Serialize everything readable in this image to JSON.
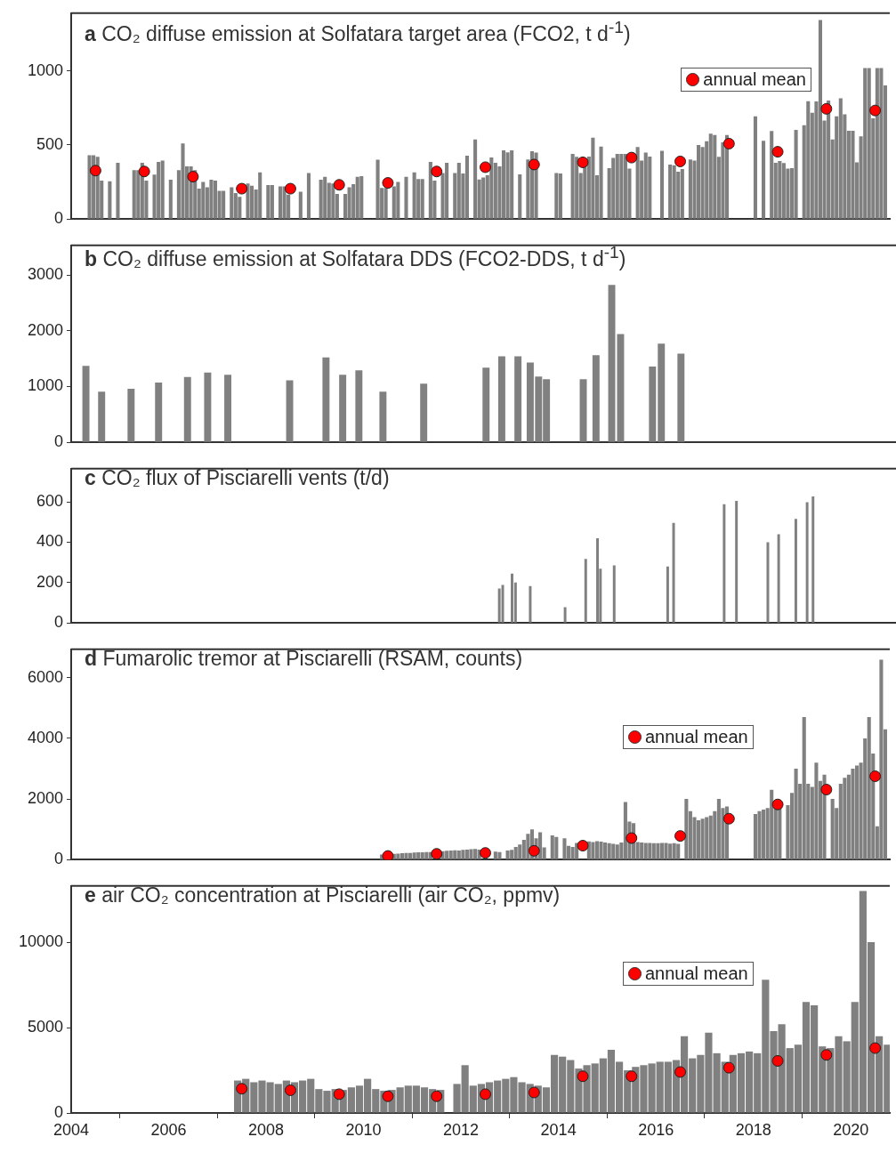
{
  "chart_data": [
    {
      "type": "bar",
      "title": "a CO₂ diffuse emission at Solfatara target area (FCO2, t d$^{-1}$)",
      "xlim": [
        2004,
        2020.8
      ],
      "ylim": [
        0,
        1390
      ],
      "yticks": [
        0,
        500,
        1000
      ],
      "tick_labels": "y",
      "legend": "top right",
      "series": [
        {
          "color": "#808080",
          "x": [
            2004.375,
            2004.458,
            2004.542,
            2004.625,
            2004.792,
            2004.958,
            2005.292,
            2005.375,
            2005.458,
            2005.542,
            2005.708,
            2005.792,
            2005.875,
            2006.042,
            2006.208,
            2006.292,
            2006.375,
            2006.458,
            2006.542,
            2006.625,
            2006.708,
            2006.792,
            2006.875,
            2006.958,
            2007.042,
            2007.125,
            2007.292,
            2007.375,
            2007.458,
            2007.625,
            2007.708,
            2007.792,
            2007.875,
            2008.042,
            2008.125,
            2008.292,
            2008.375,
            2008.458,
            2008.708,
            2008.875,
            2009.125,
            2009.208,
            2009.292,
            2009.375,
            2009.458,
            2009.625,
            2009.708,
            2009.792,
            2009.875,
            2009.958,
            2010.292,
            2010.375,
            2010.458,
            2010.625,
            2010.708,
            2010.875,
            2011.042,
            2011.125,
            2011.208,
            2011.375,
            2011.458,
            2011.625,
            2011.708,
            2011.875,
            2011.958,
            2012.042,
            2012.125,
            2012.292,
            2012.375,
            2012.458,
            2012.542,
            2012.625,
            2012.708,
            2012.792,
            2012.875,
            2012.958,
            2013.042,
            2013.208,
            2013.375,
            2013.458,
            2013.542,
            2013.958,
            2014.042,
            2014.292,
            2014.375,
            2014.458,
            2014.542,
            2014.625,
            2014.708,
            2014.792,
            2014.875,
            2015.042,
            2015.125,
            2015.208,
            2015.292,
            2015.375,
            2015.458,
            2015.625,
            2015.708,
            2015.792,
            2015.875,
            2016.125,
            2016.292,
            2016.375,
            2016.458,
            2016.542,
            2016.708,
            2016.792,
            2016.875,
            2016.958,
            2017.042,
            2017.125,
            2017.208,
            2017.292,
            2017.375,
            2017.458,
            2018.042,
            2018.208,
            2018.375,
            2018.458,
            2018.542,
            2018.625,
            2018.708,
            2018.792,
            2018.875,
            2019.042,
            2019.125,
            2019.208,
            2019.292,
            2019.375,
            2019.458,
            2019.542,
            2019.625,
            2019.708,
            2019.792,
            2019.875,
            2019.958,
            2020.042,
            2020.125,
            2020.208,
            2020.292,
            2020.375,
            2020.458,
            2020.542,
            2020.625,
            2020.708
          ],
          "values": [
            430,
            430,
            420,
            260,
            255,
            380,
            330,
            330,
            380,
            260,
            300,
            385,
            395,
            265,
            330,
            510,
            355,
            355,
            330,
            205,
            250,
            215,
            265,
            260,
            190,
            190,
            215,
            175,
            150,
            240,
            225,
            200,
            315,
            230,
            230,
            220,
            220,
            165,
            185,
            310,
            265,
            285,
            245,
            240,
            170,
            170,
            215,
            235,
            285,
            290,
            400,
            210,
            210,
            220,
            250,
            285,
            315,
            270,
            270,
            385,
            260,
            310,
            380,
            310,
            380,
            307,
            428,
            538,
            267,
            280,
            295,
            415,
            380,
            355,
            463,
            450,
            463,
            302,
            402,
            457,
            449,
            311,
            307,
            439,
            420,
            310,
            368,
            421,
            550,
            295,
            490,
            343,
            413,
            440,
            440,
            440,
            340,
            487,
            395,
            449,
            422,
            460,
            367,
            363,
            320,
            337,
            402,
            395,
            500,
            487,
            526,
            577,
            568,
            420,
            518,
            568,
            693,
            528,
            594,
            380,
            391,
            378,
            341,
            343,
            602,
            633,
            796,
            717,
            794,
            1343,
            665,
            800,
            538,
            693,
            815,
            707,
            596,
            596,
            383,
            559,
            1019,
            1019,
            680,
            1019,
            1019,
            902
          ]
        },
        {
          "type": "scatter",
          "name": "annual mean",
          "color": "#ff0000",
          "marker": "circle",
          "x": [
            2004.5,
            2005.5,
            2006.5,
            2007.5,
            2008.5,
            2009.5,
            2010.5,
            2011.5,
            2012.5,
            2013.5,
            2014.5,
            2015.5,
            2016.5,
            2017.5,
            2018.5,
            2019.5,
            2020.5
          ],
          "values": [
            327,
            321,
            286,
            205,
            205,
            231,
            244,
            321,
            350,
            368,
            383,
            415,
            389,
            509,
            454,
            744,
            733
          ]
        }
      ]
    },
    {
      "type": "bar",
      "title": "b CO₂ diffuse emission at Solfatara DDS (FCO2-DDS, t d$^{-1}$)",
      "xlim": [
        2004,
        2020.8
      ],
      "ylim": [
        0,
        3530
      ],
      "yticks": [
        0,
        1000,
        2000,
        3000
      ],
      "tick_labels": "y",
      "series": [
        {
          "color": "#808080",
          "x": [
            2004.3,
            2004.62,
            2005.22,
            2005.78,
            2006.37,
            2006.78,
            2007.19,
            2008.45,
            2009.19,
            2009.53,
            2009.86,
            2010.35,
            2011.18,
            2012.45,
            2012.77,
            2013.1,
            2013.35,
            2013.52,
            2013.68,
            2014.43,
            2014.69,
            2015.01,
            2015.19,
            2015.84,
            2016.02,
            2016.42
          ],
          "values": [
            1370,
            910,
            960,
            1070,
            1170,
            1250,
            1210,
            1110,
            1520,
            1210,
            1290,
            910,
            1050,
            1340,
            1540,
            1540,
            1430,
            1180,
            1130,
            1130,
            1560,
            2820,
            1940,
            1360,
            1770,
            1590
          ]
        }
      ]
    },
    {
      "type": "bar",
      "title": "c CO₂ flux of Pisciarelli vents (t/d)",
      "xlim": [
        2004,
        2020.8
      ],
      "ylim": [
        0,
        764
      ],
      "yticks": [
        0,
        200,
        400,
        600
      ],
      "tick_labels": "y",
      "series": [
        {
          "color": "#808080",
          "x": [
            2012.72,
            2012.79,
            2012.98,
            2013.05,
            2013.35,
            2014.06,
            2014.48,
            2014.72,
            2014.78,
            2015.06,
            2016.15,
            2016.27,
            2017.3,
            2017.55,
            2018.19,
            2018.41,
            2018.76,
            2018.99,
            2019.11
          ],
          "values": [
            171,
            188,
            244,
            200,
            183,
            78,
            317,
            420,
            268,
            285,
            280,
            495,
            588,
            605,
            400,
            439,
            515,
            598,
            627
          ]
        }
      ]
    },
    {
      "type": "bar",
      "title": "d Fumarolic tremor at Pisciarelli (RSAM, counts)",
      "xlim": [
        2004,
        2020.8
      ],
      "ylim": [
        0,
        6940
      ],
      "yticks": [
        0,
        2000,
        4000,
        6000
      ],
      "tick_labels": "y",
      "legend": "top",
      "series": [
        {
          "color": "#808080",
          "x": [
            2010.375,
            2010.625,
            2010.708,
            2010.792,
            2010.875,
            2010.958,
            2011.042,
            2011.125,
            2011.208,
            2011.292,
            2011.375,
            2011.625,
            2011.708,
            2011.792,
            2011.875,
            2011.958,
            2012.042,
            2012.125,
            2012.208,
            2012.292,
            2012.375,
            2012.708,
            2012.792,
            2012.958,
            2013.042,
            2013.125,
            2013.208,
            2013.292,
            2013.375,
            2013.458,
            2013.542,
            2013.625,
            2013.708,
            2013.875,
            2013.958,
            2014.125,
            2014.208,
            2014.292,
            2014.375,
            2014.458,
            2014.542,
            2014.625,
            2014.708,
            2014.792,
            2014.875,
            2014.958,
            2015.042,
            2015.125,
            2015.208,
            2015.292,
            2015.375,
            2015.458,
            2015.542,
            2015.625,
            2015.708,
            2015.792,
            2015.875,
            2015.958,
            2016.042,
            2016.125,
            2016.208,
            2016.292,
            2016.375,
            2016.458,
            2016.625,
            2016.708,
            2016.792,
            2016.875,
            2016.958,
            2017.042,
            2017.125,
            2017.208,
            2017.292,
            2017.375,
            2017.458,
            2018.042,
            2018.125,
            2018.208,
            2018.292,
            2018.375,
            2018.458,
            2018.542,
            2018.708,
            2018.792,
            2018.875,
            2018.958,
            2019.042,
            2019.125,
            2019.208,
            2019.292,
            2019.375,
            2019.458,
            2019.625,
            2019.708,
            2019.792,
            2019.875,
            2019.958,
            2020.042,
            2020.125,
            2020.208,
            2020.292,
            2020.375,
            2020.458,
            2020.542,
            2020.625,
            2020.708
          ],
          "values": [
            170,
            190,
            200,
            210,
            220,
            220,
            230,
            240,
            240,
            250,
            250,
            280,
            290,
            300,
            310,
            300,
            320,
            330,
            340,
            350,
            330,
            260,
            250,
            300,
            320,
            420,
            500,
            650,
            850,
            1000,
            700,
            900,
            400,
            800,
            750,
            700,
            450,
            420,
            550,
            null,
            null,
            600,
            580,
            610,
            590,
            560,
            540,
            520,
            500,
            560,
            1900,
            1250,
            1200,
            580,
            560,
            550,
            550,
            540,
            540,
            550,
            550,
            530,
            540,
            520,
            2000,
            1600,
            1400,
            1300,
            1350,
            1400,
            1450,
            1600,
            2000,
            1700,
            1750,
            1500,
            1600,
            1650,
            1700,
            2300,
            1800,
            1700,
            1800,
            2200,
            3000,
            2500,
            4700,
            2500,
            2400,
            3200,
            2600,
            2800,
            2000,
            1700,
            2500,
            2700,
            2800,
            3000,
            3100,
            3200,
            4000,
            4700,
            3500,
            1100,
            6600,
            4300
          ]
        },
        {
          "type": "scatter",
          "name": "annual mean",
          "color": "#ff0000",
          "marker": "circle",
          "x": [
            2010.5,
            2011.5,
            2012.5,
            2013.5,
            2014.5,
            2015.5,
            2016.5,
            2017.5,
            2018.5,
            2019.5,
            2020.5
          ],
          "values": [
            120,
            190,
            220,
            290,
            460,
            710,
            780,
            1350,
            1820,
            2310,
            2750
          ]
        }
      ]
    },
    {
      "type": "bar",
      "title": "e air CO₂ concentration at Pisciarelli (air CO₂, ppmv)",
      "xlim": [
        2004,
        2020.8
      ],
      "xticks": [
        2004,
        2006,
        2008,
        2010,
        2012,
        2014,
        2016,
        2018,
        2020
      ],
      "ylim": [
        0,
        13300
      ],
      "yticks": [
        0,
        5000,
        10000
      ],
      "legend": "top",
      "series": [
        {
          "color": "#808080",
          "x": [
            2007.417,
            2007.583,
            2007.75,
            2007.917,
            2008.083,
            2008.25,
            2008.417,
            2008.583,
            2008.75,
            2008.917,
            2009.083,
            2009.25,
            2009.417,
            2009.583,
            2009.75,
            2009.917,
            2010.083,
            2010.25,
            2010.417,
            2010.583,
            2010.75,
            2010.917,
            2011.083,
            2011.25,
            2011.417,
            2011.583,
            2011.917,
            2012.083,
            2012.25,
            2012.417,
            2012.583,
            2012.75,
            2012.917,
            2013.083,
            2013.25,
            2013.417,
            2013.583,
            2013.75,
            2013.917,
            2014.083,
            2014.25,
            2014.417,
            2014.583,
            2014.75,
            2014.917,
            2015.083,
            2015.25,
            2015.417,
            2015.583,
            2015.75,
            2015.917,
            2016.083,
            2016.25,
            2016.417,
            2016.583,
            2016.75,
            2016.917,
            2017.083,
            2017.25,
            2017.417,
            2017.583,
            2017.75,
            2017.917,
            2018.083,
            2018.25,
            2018.417,
            2018.583,
            2018.75,
            2018.917,
            2019.083,
            2019.25,
            2019.417,
            2019.583,
            2019.75,
            2019.917,
            2020.083,
            2020.25,
            2020.417,
            2020.583,
            2020.75
          ],
          "values": [
            1900,
            2000,
            1800,
            1900,
            1800,
            1700,
            1900,
            1800,
            1900,
            2000,
            1400,
            1300,
            1400,
            1350,
            1500,
            1600,
            2000,
            1400,
            1300,
            1350,
            1500,
            1600,
            1600,
            1500,
            1400,
            1350,
            1700,
            2800,
            1600,
            1700,
            1800,
            1900,
            2000,
            2100,
            1800,
            1700,
            1600,
            1500,
            3400,
            3300,
            3100,
            2600,
            2800,
            2900,
            3200,
            3700,
            3000,
            2500,
            2700,
            2800,
            2900,
            3000,
            3000,
            3100,
            4500,
            3200,
            3400,
            4700,
            3500,
            3000,
            3400,
            3500,
            3600,
            3500,
            7800,
            4800,
            5200,
            3800,
            4000,
            6500,
            6300,
            3900,
            3800,
            4500,
            4200,
            6500,
            13000,
            10000,
            4500,
            4000
          ]
        },
        {
          "type": "scatter",
          "name": "annual mean",
          "color": "#ff0000",
          "marker": "circle",
          "x": [
            2007.5,
            2008.5,
            2009.5,
            2010.5,
            2011.5,
            2012.5,
            2013.5,
            2014.5,
            2015.5,
            2016.5,
            2017.5,
            2018.5,
            2019.5,
            2020.5
          ],
          "values": [
            1420,
            1330,
            1100,
            980,
            980,
            1100,
            1200,
            2150,
            2150,
            2400,
            2650,
            3050,
            3400,
            3800
          ]
        }
      ]
    }
  ]
}
